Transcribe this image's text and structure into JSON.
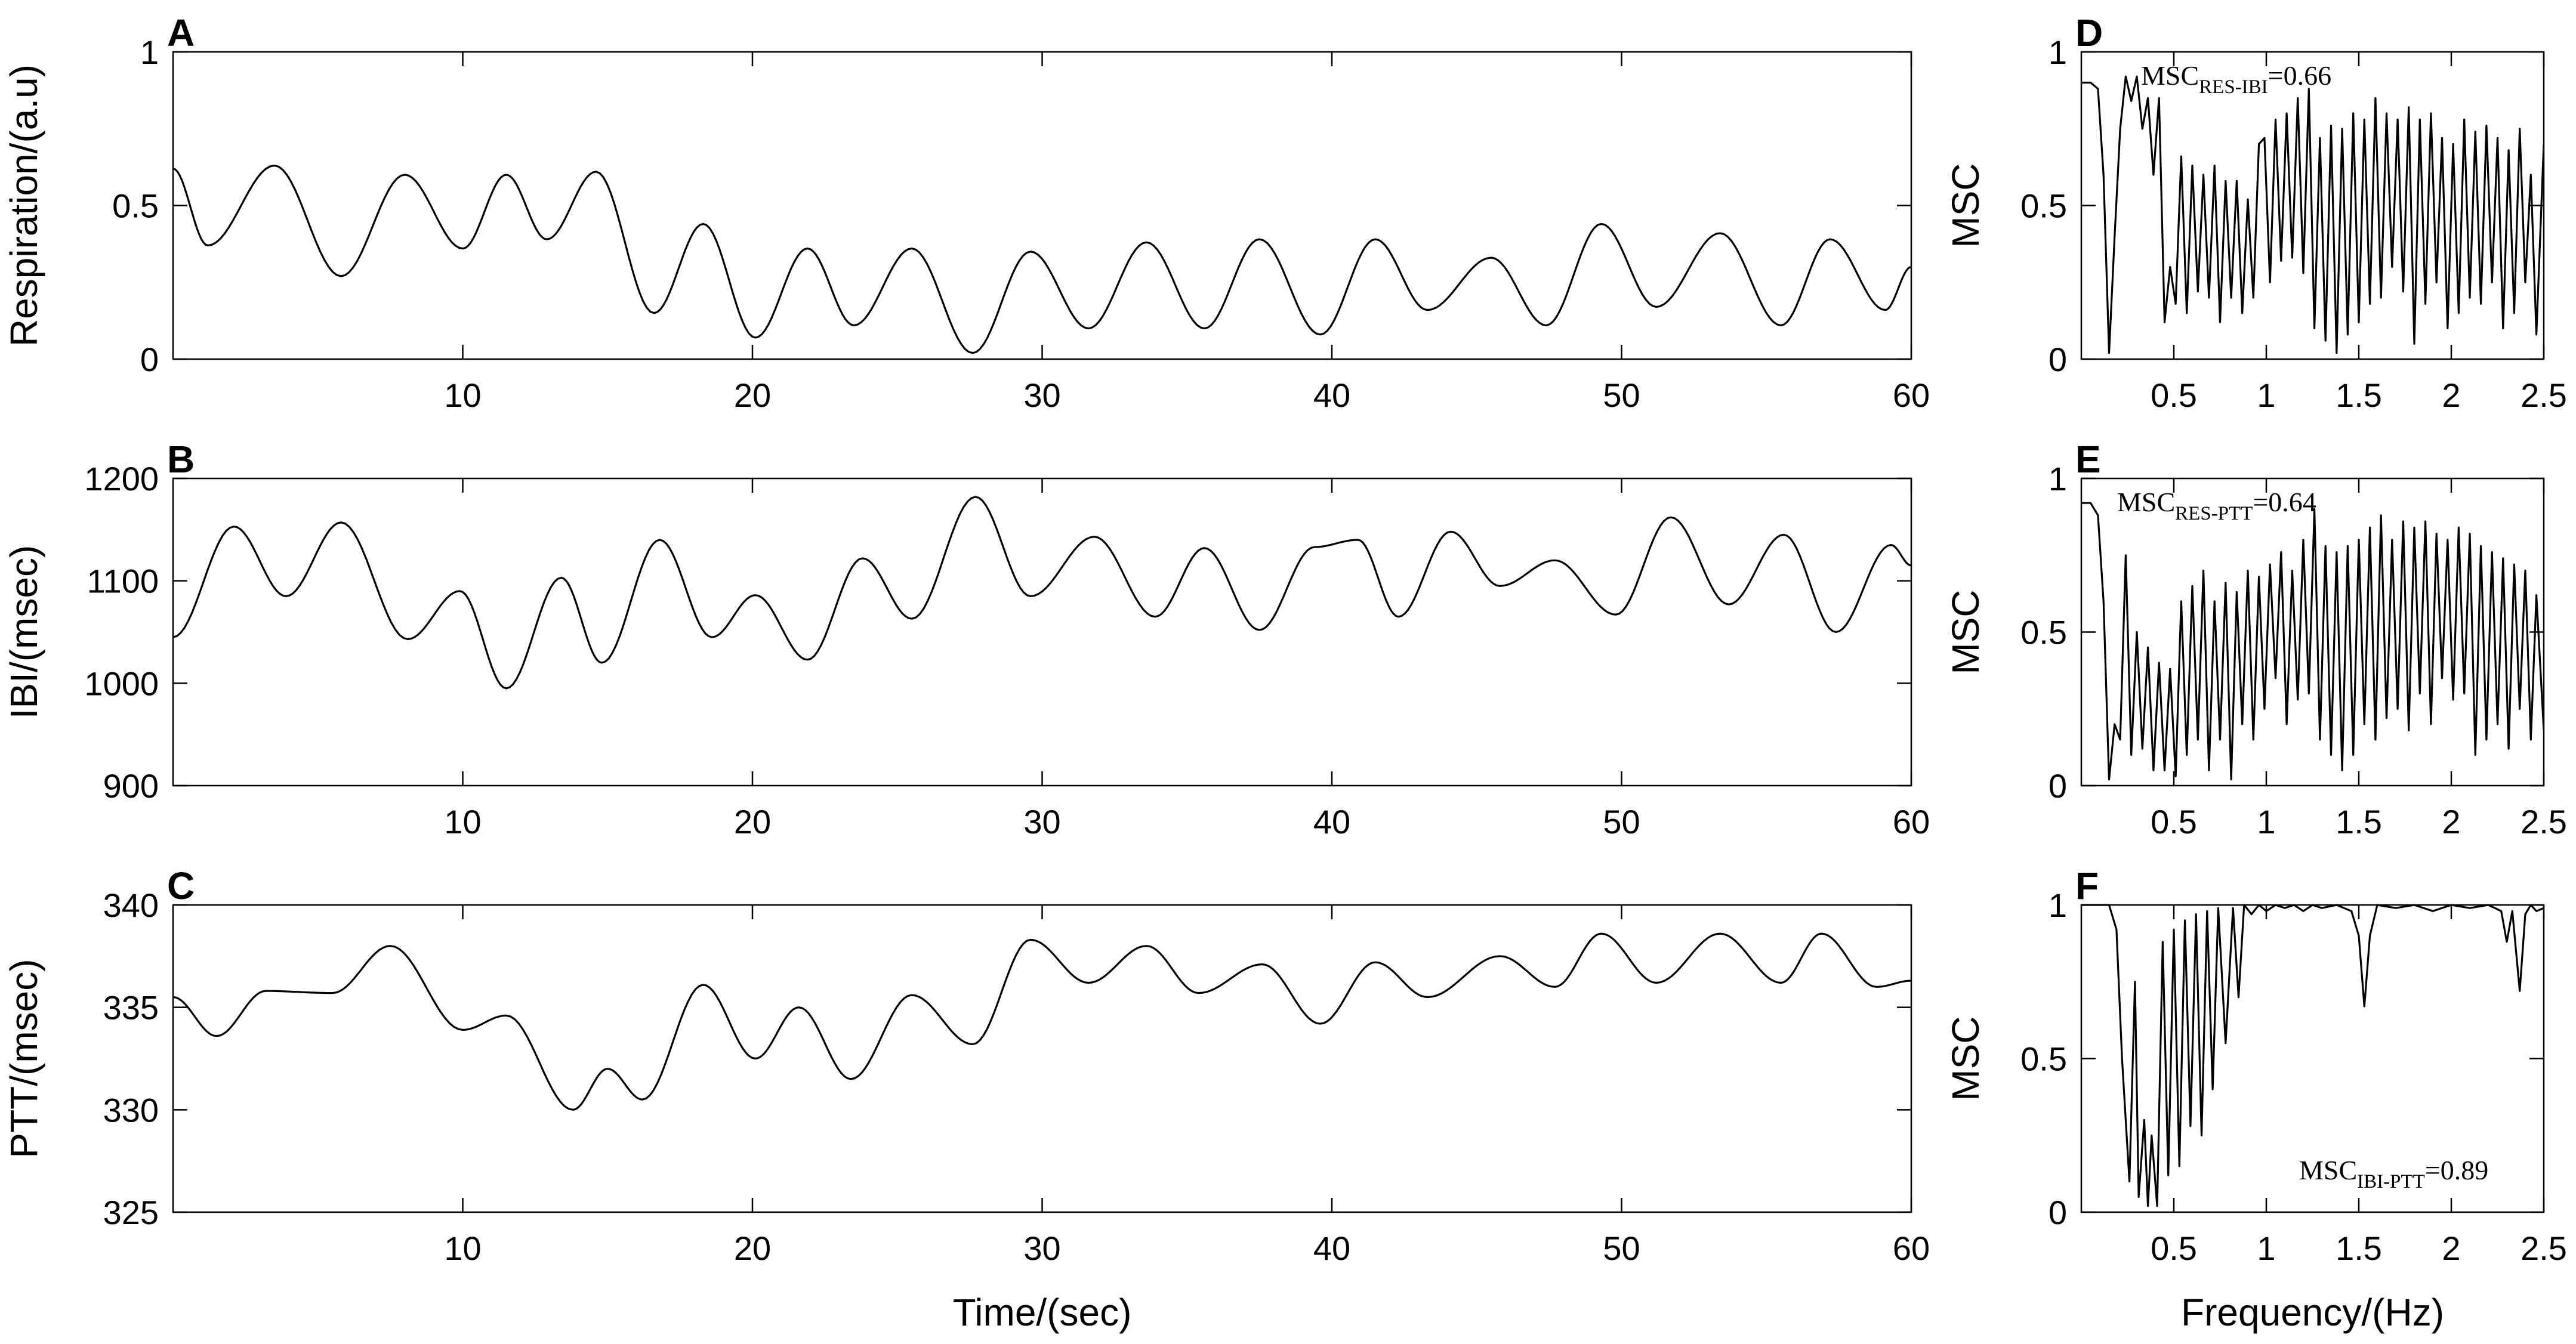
{
  "chart_data": [
    {
      "panel": "A",
      "type": "line",
      "xlabel": "",
      "ylabel": "Respiration/(a.u)",
      "xlim": [
        0,
        60
      ],
      "ylim": [
        0,
        1
      ],
      "xticks": [
        10,
        20,
        30,
        40,
        50,
        60
      ],
      "yticks": [
        0,
        0.5,
        1
      ],
      "grid": false,
      "series": [
        {
          "x": [
            0,
            1.2,
            3.5,
            5.8,
            8,
            10,
            11.5,
            12.9,
            14.6,
            16.6,
            18.3,
            20.1,
            21.9,
            23.5,
            25.5,
            27.6,
            29.6,
            31.6,
            33.6,
            35.6,
            37.5,
            39.6,
            41.5,
            43.3,
            45.5,
            47.4,
            49.3,
            51.2,
            53.4,
            55.5,
            57.2,
            59.1,
            60
          ],
          "y": [
            0.62,
            0.37,
            0.63,
            0.27,
            0.6,
            0.36,
            0.6,
            0.39,
            0.61,
            0.15,
            0.44,
            0.07,
            0.36,
            0.11,
            0.36,
            0.02,
            0.35,
            0.1,
            0.38,
            0.1,
            0.39,
            0.08,
            0.39,
            0.16,
            0.33,
            0.11,
            0.44,
            0.17,
            0.41,
            0.11,
            0.39,
            0.16,
            0.3
          ]
        }
      ]
    },
    {
      "panel": "B",
      "type": "line",
      "xlabel": "",
      "ylabel": "IBI/(msec)",
      "xlim": [
        0,
        60
      ],
      "ylim": [
        900,
        1200
      ],
      "xticks": [
        10,
        20,
        30,
        40,
        50,
        60
      ],
      "yticks": [
        900,
        1000,
        1100,
        1200
      ],
      "grid": false,
      "series": [
        {
          "x": [
            0,
            2.1,
            3.9,
            5.8,
            8.1,
            9.9,
            11.5,
            13.4,
            14.8,
            16.8,
            18.6,
            20.1,
            21.9,
            23.8,
            25.5,
            27.7,
            29.6,
            31.8,
            33.9,
            35.6,
            37.5,
            39.4,
            40.9,
            42.3,
            44.1,
            45.8,
            47.7,
            49.8,
            51.7,
            53.7,
            55.6,
            57.4,
            59.3,
            60
          ],
          "y": [
            1045,
            1153,
            1085,
            1157,
            1043,
            1090,
            995,
            1103,
            1020,
            1140,
            1045,
            1086,
            1023,
            1122,
            1063,
            1182,
            1085,
            1143,
            1065,
            1132,
            1052,
            1133,
            1140,
            1065,
            1148,
            1095,
            1120,
            1067,
            1162,
            1077,
            1145,
            1050,
            1135,
            1115
          ]
        }
      ]
    },
    {
      "panel": "C",
      "type": "line",
      "xlabel": "Time/(sec)",
      "ylabel": "PTT/(msec)",
      "xlim": [
        0,
        60
      ],
      "ylim": [
        325,
        340
      ],
      "xticks": [
        10,
        20,
        30,
        40,
        50,
        60
      ],
      "yticks": [
        325,
        330,
        335,
        340
      ],
      "grid": false,
      "series": [
        {
          "x": [
            0,
            1.5,
            3.2,
            5.5,
            7.5,
            10,
            11.5,
            13.8,
            15,
            16.2,
            18.3,
            20.1,
            21.6,
            23.4,
            25.5,
            27.6,
            29.6,
            31.6,
            33.6,
            35.4,
            37.6,
            39.6,
            41.5,
            43.3,
            45.8,
            47.7,
            49.3,
            51.2,
            53.4,
            55.5,
            56.9,
            58.8,
            60
          ],
          "y": [
            335.5,
            333.6,
            335.8,
            335.7,
            338,
            333.9,
            334.6,
            330,
            332,
            330.5,
            336.1,
            332.5,
            335,
            331.5,
            335.6,
            333.2,
            338.3,
            336.2,
            338,
            335.7,
            337.1,
            334.2,
            337.2,
            335.5,
            337.5,
            336,
            338.6,
            336.2,
            338.6,
            336.2,
            338.6,
            336,
            336.3
          ]
        }
      ]
    },
    {
      "panel": "D",
      "type": "line",
      "xlabel": "",
      "ylabel": "MSC",
      "xlim": [
        0,
        2.5
      ],
      "ylim": [
        0,
        1
      ],
      "xticks": [
        0.5,
        1,
        1.5,
        2,
        2.5
      ],
      "yticks": [
        0,
        0.5,
        1
      ],
      "grid": false,
      "annotation": {
        "text": "MSC",
        "sub": "RES-IBI",
        "rest": "=0.66",
        "position": "top-left"
      },
      "series": [
        {
          "x": [
            0,
            0.05,
            0.09,
            0.12,
            0.15,
            0.18,
            0.21,
            0.24,
            0.27,
            0.3,
            0.33,
            0.36,
            0.39,
            0.42,
            0.45,
            0.48,
            0.51,
            0.54,
            0.57,
            0.6,
            0.63,
            0.66,
            0.69,
            0.72,
            0.75,
            0.78,
            0.81,
            0.84,
            0.87,
            0.9,
            0.93,
            0.96,
            0.99,
            1.02,
            1.05,
            1.08,
            1.11,
            1.14,
            1.17,
            1.2,
            1.23,
            1.26,
            1.29,
            1.32,
            1.35,
            1.38,
            1.41,
            1.44,
            1.47,
            1.5,
            1.53,
            1.56,
            1.59,
            1.62,
            1.65,
            1.68,
            1.71,
            1.74,
            1.77,
            1.8,
            1.83,
            1.86,
            1.89,
            1.92,
            1.95,
            1.98,
            2.01,
            2.04,
            2.07,
            2.1,
            2.13,
            2.16,
            2.19,
            2.22,
            2.25,
            2.28,
            2.31,
            2.34,
            2.37,
            2.4,
            2.43,
            2.46,
            2.5
          ],
          "y": [
            0.9,
            0.9,
            0.88,
            0.6,
            0.02,
            0.4,
            0.75,
            0.92,
            0.84,
            0.92,
            0.75,
            0.85,
            0.6,
            0.85,
            0.12,
            0.3,
            0.18,
            0.66,
            0.15,
            0.63,
            0.22,
            0.6,
            0.2,
            0.63,
            0.12,
            0.58,
            0.2,
            0.58,
            0.15,
            0.52,
            0.2,
            0.7,
            0.72,
            0.25,
            0.78,
            0.32,
            0.8,
            0.33,
            0.85,
            0.28,
            0.88,
            0.1,
            0.72,
            0.06,
            0.76,
            0.02,
            0.75,
            0.08,
            0.8,
            0.12,
            0.78,
            0.18,
            0.85,
            0.2,
            0.8,
            0.3,
            0.78,
            0.22,
            0.82,
            0.05,
            0.78,
            0.18,
            0.8,
            0.25,
            0.72,
            0.1,
            0.7,
            0.15,
            0.78,
            0.2,
            0.74,
            0.18,
            0.76,
            0.25,
            0.72,
            0.1,
            0.68,
            0.15,
            0.75,
            0.25,
            0.6,
            0.08,
            0.7
          ]
        }
      ]
    },
    {
      "panel": "E",
      "type": "line",
      "xlabel": "",
      "ylabel": "MSC",
      "xlim": [
        0,
        2.5
      ],
      "ylim": [
        0,
        1
      ],
      "xticks": [
        0.5,
        1,
        1.5,
        2,
        2.5
      ],
      "yticks": [
        0,
        0.5,
        1
      ],
      "grid": false,
      "annotation": {
        "text": "MSC",
        "sub": "RES-PTT",
        "rest": "=0.64",
        "position": "top-left"
      },
      "series": [
        {
          "x": [
            0,
            0.05,
            0.09,
            0.12,
            0.15,
            0.18,
            0.21,
            0.24,
            0.27,
            0.3,
            0.33,
            0.36,
            0.39,
            0.42,
            0.45,
            0.48,
            0.51,
            0.54,
            0.57,
            0.6,
            0.63,
            0.66,
            0.69,
            0.72,
            0.75,
            0.78,
            0.81,
            0.84,
            0.87,
            0.9,
            0.93,
            0.96,
            0.99,
            1.02,
            1.05,
            1.08,
            1.11,
            1.14,
            1.17,
            1.2,
            1.23,
            1.26,
            1.29,
            1.32,
            1.35,
            1.38,
            1.41,
            1.44,
            1.47,
            1.5,
            1.53,
            1.56,
            1.59,
            1.62,
            1.65,
            1.68,
            1.71,
            1.74,
            1.77,
            1.8,
            1.83,
            1.86,
            1.89,
            1.92,
            1.95,
            1.98,
            2.01,
            2.04,
            2.07,
            2.1,
            2.13,
            2.16,
            2.19,
            2.22,
            2.25,
            2.28,
            2.31,
            2.34,
            2.37,
            2.4,
            2.43,
            2.46,
            2.5
          ],
          "y": [
            0.92,
            0.92,
            0.88,
            0.6,
            0.02,
            0.2,
            0.15,
            0.75,
            0.1,
            0.5,
            0.12,
            0.45,
            0.05,
            0.4,
            0.05,
            0.38,
            0.03,
            0.6,
            0.1,
            0.65,
            0.15,
            0.7,
            0.05,
            0.6,
            0.15,
            0.66,
            0.02,
            0.63,
            0.2,
            0.7,
            0.15,
            0.68,
            0.25,
            0.72,
            0.35,
            0.76,
            0.2,
            0.7,
            0.28,
            0.8,
            0.3,
            0.9,
            0.15,
            0.78,
            0.1,
            0.76,
            0.05,
            0.78,
            0.1,
            0.8,
            0.2,
            0.84,
            0.15,
            0.88,
            0.22,
            0.8,
            0.25,
            0.86,
            0.18,
            0.84,
            0.3,
            0.86,
            0.2,
            0.82,
            0.35,
            0.8,
            0.28,
            0.84,
            0.3,
            0.82,
            0.1,
            0.78,
            0.15,
            0.76,
            0.2,
            0.74,
            0.12,
            0.72,
            0.25,
            0.7,
            0.15,
            0.62,
            0.18
          ]
        }
      ]
    },
    {
      "panel": "F",
      "type": "line",
      "xlabel": "Frequency/(Hz)",
      "ylabel": "MSC",
      "xlim": [
        0,
        2.5
      ],
      "ylim": [
        0,
        1
      ],
      "xticks": [
        0.5,
        1,
        1.5,
        2,
        2.5
      ],
      "yticks": [
        0,
        0.5,
        1
      ],
      "grid": false,
      "annotation": {
        "text": "MSC",
        "sub": "IBI-PTT",
        "rest": "=0.89",
        "position": "bottom-right"
      },
      "series": [
        {
          "x": [
            0,
            0.1,
            0.15,
            0.19,
            0.22,
            0.26,
            0.29,
            0.31,
            0.34,
            0.36,
            0.38,
            0.41,
            0.44,
            0.47,
            0.5,
            0.53,
            0.56,
            0.59,
            0.62,
            0.65,
            0.68,
            0.71,
            0.74,
            0.78,
            0.82,
            0.85,
            0.88,
            0.92,
            0.96,
            1.0,
            1.05,
            1.1,
            1.15,
            1.2,
            1.25,
            1.3,
            1.38,
            1.46,
            1.5,
            1.53,
            1.56,
            1.6,
            1.7,
            1.8,
            1.9,
            2.0,
            2.1,
            2.2,
            2.27,
            2.3,
            2.33,
            2.37,
            2.4,
            2.43,
            2.46,
            2.5
          ],
          "y": [
            1,
            1,
            1,
            0.92,
            0.5,
            0.1,
            0.75,
            0.05,
            0.3,
            0.02,
            0.25,
            0.02,
            0.88,
            0.12,
            0.92,
            0.15,
            0.95,
            0.28,
            0.97,
            0.25,
            0.98,
            0.4,
            0.99,
            0.55,
            0.99,
            0.7,
            1,
            0.97,
            1,
            0.98,
            1,
            0.99,
            1,
            0.98,
            1,
            0.99,
            1,
            0.98,
            0.9,
            0.67,
            0.9,
            1,
            0.99,
            1,
            0.98,
            1,
            0.99,
            1,
            0.98,
            0.88,
            0.98,
            0.72,
            0.97,
            1,
            0.98,
            0.99
          ]
        }
      ]
    }
  ]
}
